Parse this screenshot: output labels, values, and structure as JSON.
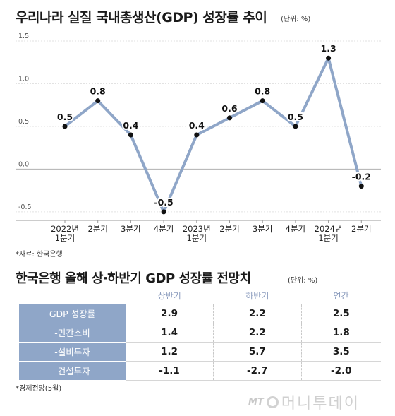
{
  "chart": {
    "title": "우리나라 실질 국내총생산(GDP) 성장률 추이",
    "unit": "(단위: %)",
    "source": "*자료: 한국은행"
  },
  "chart_data": {
    "type": "line",
    "title": "우리나라 실질 국내총생산(GDP) 성장률 추이",
    "xlabel": "",
    "ylabel": "",
    "categories": [
      [
        "2022년",
        "1분기"
      ],
      [
        "2분기"
      ],
      [
        "3분기"
      ],
      [
        "4분기"
      ],
      [
        "2023년",
        "1분기"
      ],
      [
        "2분기"
      ],
      [
        "3분기"
      ],
      [
        "4분기"
      ],
      [
        "2024년",
        "1분기"
      ],
      [
        "2분기"
      ]
    ],
    "values": [
      0.5,
      0.8,
      0.4,
      -0.5,
      0.4,
      0.6,
      0.8,
      0.5,
      1.3,
      -0.2
    ],
    "value_labels": [
      "0.5",
      "0.8",
      "0.4",
      "-0.5",
      "0.4",
      "0.6",
      "0.8",
      "0.5",
      "1.3",
      "-0.2"
    ],
    "yticks": [
      1.5,
      1.0,
      0.5,
      0.0,
      -0.5
    ],
    "ytick_labels": [
      "1.5",
      "1.0",
      "0.5",
      "0.0",
      "-0.5"
    ],
    "ylim": [
      -0.6,
      1.5
    ],
    "grid": true,
    "line_color": "#8fa6c8"
  },
  "table": {
    "title": "한국은행 올해 상·하반기 GDP 성장률 전망치",
    "unit": "(단위: %)",
    "headers": [
      "상반기",
      "하반기",
      "연간"
    ],
    "rows": [
      {
        "label": "GDP 성장률",
        "values": [
          "2.9",
          "2.2",
          "2.5"
        ]
      },
      {
        "label": "-민간소비",
        "values": [
          "1.4",
          "2.2",
          "1.8"
        ]
      },
      {
        "label": "-설비투자",
        "values": [
          "1.2",
          "5.7",
          "3.5"
        ]
      },
      {
        "label": "-건설투자",
        "values": [
          "-1.1",
          "-2.7",
          "-2.0"
        ]
      }
    ],
    "source": "*경제전망(5월)"
  },
  "logo": {
    "mark": "MT",
    "name": "머니투데이"
  },
  "colors": {
    "accent": "#8fa6c8",
    "header_text": "#8a9bbd"
  }
}
